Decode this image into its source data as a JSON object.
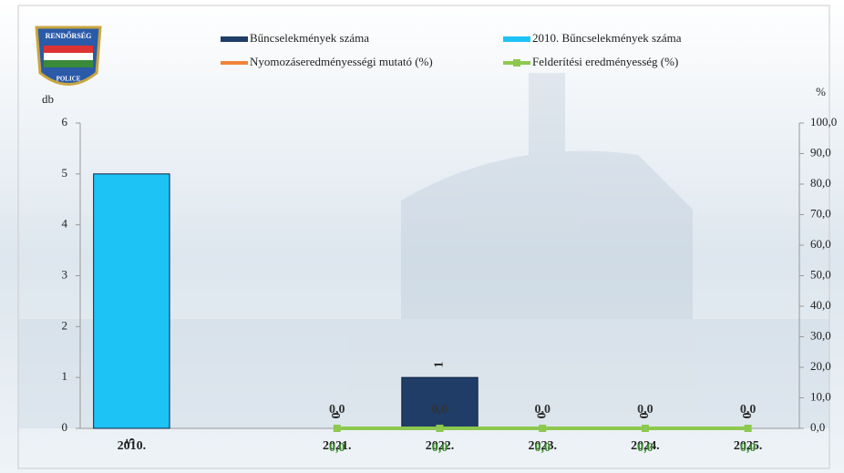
{
  "logo": {
    "top": "RENDŐRSÉG",
    "bottom": "POLICE"
  },
  "chart_data": {
    "type": "bar",
    "y_label": "db",
    "y2_label": "%",
    "categories": [
      "2010.",
      null,
      "2021.",
      "2022.",
      "2023.",
      "2024.",
      "2025."
    ],
    "ylim": [
      0,
      6
    ],
    "yticks": [
      0,
      1,
      2,
      3,
      4,
      5,
      6
    ],
    "y2lim": [
      0,
      100
    ],
    "y2ticks": [
      {
        "value": 0,
        "label": "0,0"
      },
      {
        "value": 10,
        "label": "10,0"
      },
      {
        "value": 20,
        "label": "20,0"
      },
      {
        "value": 30,
        "label": "30,0"
      },
      {
        "value": 40,
        "label": "40,0"
      },
      {
        "value": 50,
        "label": "50,0"
      },
      {
        "value": 60,
        "label": "60,0"
      },
      {
        "value": 70,
        "label": "70,0"
      },
      {
        "value": 80,
        "label": "80,0"
      },
      {
        "value": 90,
        "label": "90,0"
      },
      {
        "value": 100,
        "label": "100,0"
      }
    ],
    "series": [
      {
        "name": "Bűncselekmények száma",
        "type": "bar",
        "color": "#1f3d66",
        "values": [
          null,
          null,
          0,
          1,
          0,
          0,
          0
        ]
      },
      {
        "name": "2010. Bűncselekmények száma",
        "type": "bar",
        "color": "#1ec3f6",
        "values": [
          5,
          null,
          null,
          null,
          null,
          null,
          null
        ]
      },
      {
        "name": "Nyomozáseredményességi mutató (%)",
        "type": "line",
        "axis": "y2",
        "color": "#f0843a",
        "values": [
          null,
          null,
          0,
          0,
          0,
          0,
          0
        ],
        "value_labels": [
          null,
          null,
          "0,0",
          "0,0",
          "0,0",
          "0,0",
          "0,0"
        ]
      },
      {
        "name": "Felderítési eredményesség (%)",
        "type": "line",
        "axis": "y2",
        "color": "#8cc94e",
        "values": [
          null,
          null,
          0,
          0,
          0,
          0,
          0
        ],
        "value_labels": [
          null,
          null,
          "0,0",
          "0,0",
          "0,0",
          "0,0",
          "0,0"
        ]
      }
    ]
  }
}
